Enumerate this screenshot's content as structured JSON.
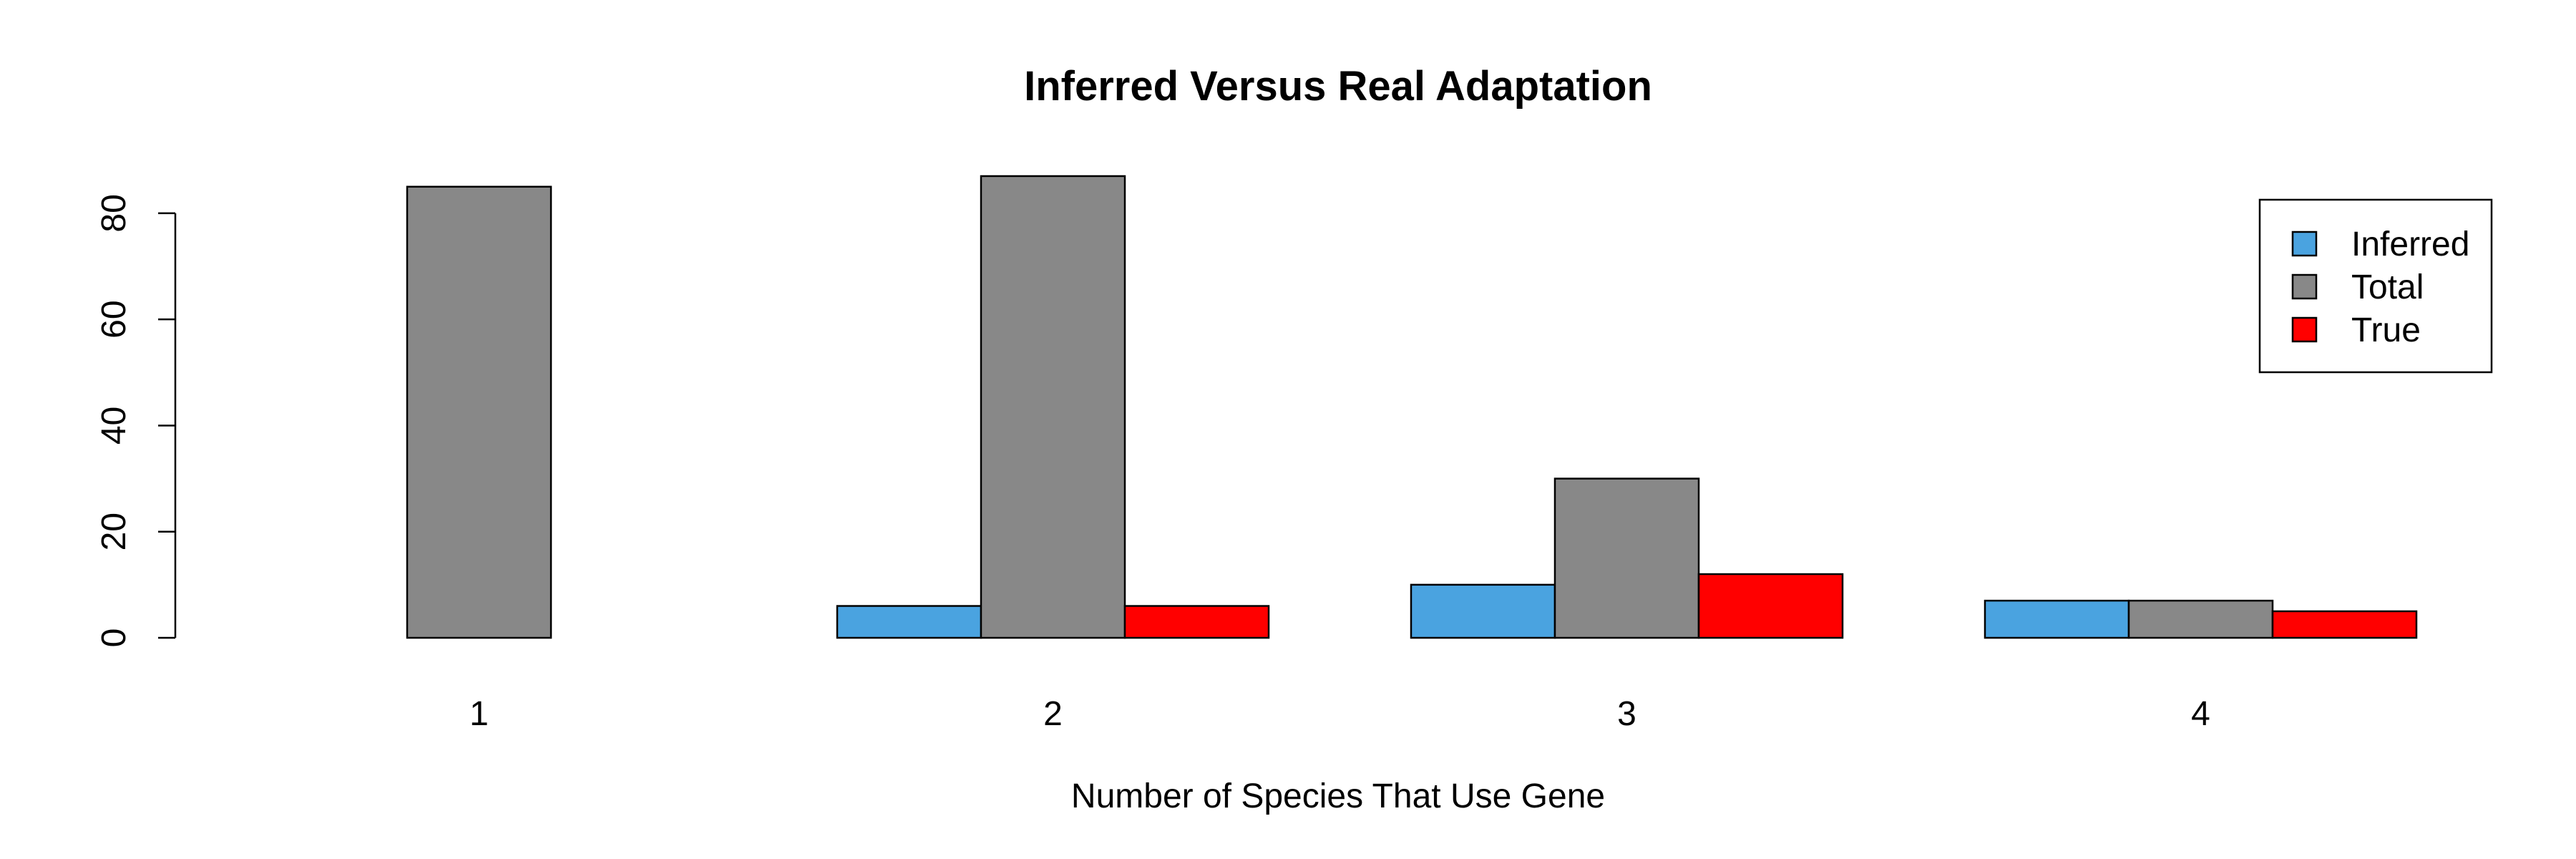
{
  "chart_data": {
    "type": "bar",
    "title": "Inferred Versus Real Adaptation",
    "xlabel": "Number of Species That Use Gene",
    "ylabel": "",
    "categories": [
      "1",
      "2",
      "3",
      "4"
    ],
    "series": [
      {
        "name": "Inferred",
        "color": "#4aa3e0",
        "values": [
          0,
          6,
          10,
          7
        ]
      },
      {
        "name": "Total",
        "color": "#888888",
        "values": [
          85,
          87,
          30,
          7
        ]
      },
      {
        "name": "True",
        "color": "#ff0000",
        "values": [
          0,
          6,
          12,
          5
        ]
      }
    ],
    "ylim": [
      0,
      87
    ],
    "yticks": [
      "0",
      "20",
      "40",
      "60",
      "80"
    ],
    "legend_position": "top-right",
    "grid": false
  }
}
